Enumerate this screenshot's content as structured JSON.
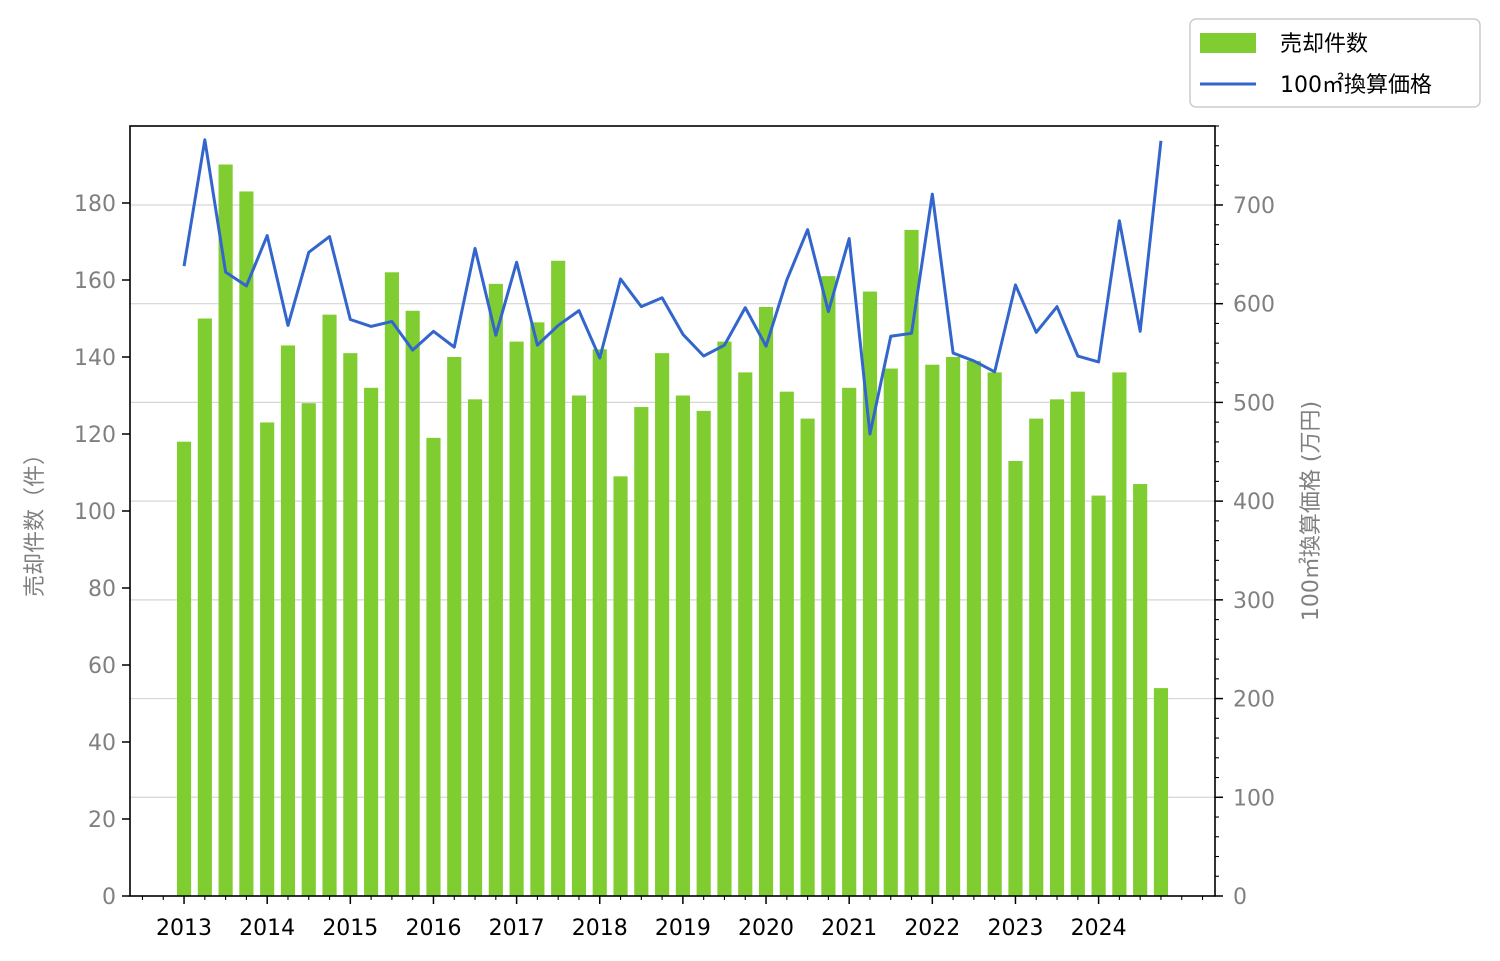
{
  "chart_data": {
    "type": "bar",
    "legend": {
      "position": "top-right",
      "entries": [
        {
          "label": "売却件数",
          "kind": "bar",
          "color": "#7fcd31"
        },
        {
          "label": "100㎡換算価格",
          "kind": "line",
          "color": "#3366cc"
        }
      ]
    },
    "x_tick_labels": [
      "2013",
      "2014",
      "2015",
      "2016",
      "2017",
      "2018",
      "2019",
      "2020",
      "2021",
      "2022",
      "2023",
      "2024"
    ],
    "x_year_range": [
      2012.35,
      2025.4
    ],
    "left_axis": {
      "label": "売却件数（件）",
      "ylim": [
        0,
        200
      ],
      "ticks": [
        0,
        20,
        40,
        60,
        80,
        100,
        120,
        140,
        160,
        180
      ]
    },
    "right_axis": {
      "label": "100㎡換算価格 (万円)",
      "ylim": [
        0,
        780
      ],
      "ticks": [
        0,
        100,
        200,
        300,
        400,
        500,
        600,
        700
      ]
    },
    "grid": true,
    "series": [
      {
        "name": "売却件数",
        "type": "bar",
        "axis": "left",
        "color": "#7fcd31",
        "x": [
          2013.0,
          2013.25,
          2013.5,
          2013.75,
          2014.0,
          2014.25,
          2014.5,
          2014.75,
          2015.0,
          2015.25,
          2015.5,
          2015.75,
          2016.0,
          2016.25,
          2016.5,
          2016.75,
          2017.0,
          2017.25,
          2017.5,
          2017.75,
          2018.0,
          2018.25,
          2018.5,
          2018.75,
          2019.0,
          2019.25,
          2019.5,
          2019.75,
          2020.0,
          2020.25,
          2020.5,
          2020.75,
          2021.0,
          2021.25,
          2021.5,
          2021.75,
          2022.0,
          2022.25,
          2022.5,
          2022.75,
          2023.0,
          2023.25,
          2023.5,
          2023.75,
          2024.0,
          2024.25,
          2024.5,
          2024.75
        ],
        "values": [
          118,
          150,
          190,
          183,
          123,
          143,
          128,
          151,
          141,
          132,
          162,
          152,
          119,
          140,
          129,
          159,
          144,
          149,
          165,
          130,
          142,
          109,
          127,
          141,
          130,
          126,
          144,
          136,
          153,
          131,
          124,
          161,
          132,
          157,
          137,
          173,
          138,
          140,
          139,
          136,
          113,
          124,
          129,
          131,
          104,
          136,
          107,
          54
        ]
      },
      {
        "name": "100㎡換算価格",
        "type": "line",
        "axis": "right",
        "color": "#3366cc",
        "x": [
          2013.0,
          2013.25,
          2013.5,
          2013.75,
          2014.0,
          2014.25,
          2014.5,
          2014.75,
          2015.0,
          2015.25,
          2015.5,
          2015.75,
          2016.0,
          2016.25,
          2016.5,
          2016.75,
          2017.0,
          2017.25,
          2017.5,
          2017.75,
          2018.0,
          2018.25,
          2018.5,
          2018.75,
          2019.0,
          2019.25,
          2019.5,
          2019.75,
          2020.0,
          2020.25,
          2020.5,
          2020.75,
          2021.0,
          2021.25,
          2021.5,
          2021.75,
          2022.0,
          2022.25,
          2022.5,
          2022.75,
          2023.0,
          2023.25,
          2023.5,
          2023.75,
          2024.0,
          2024.25,
          2024.5,
          2024.75
        ],
        "values": [
          638,
          766,
          632,
          618,
          669,
          578,
          652,
          668,
          584,
          577,
          582,
          553,
          572,
          556,
          656,
          568,
          642,
          558,
          578,
          593,
          545,
          625,
          597,
          606,
          569,
          547,
          558,
          596,
          557,
          624,
          675,
          592,
          666,
          468,
          567,
          570,
          711,
          550,
          542,
          531,
          619,
          571,
          597,
          547,
          541,
          684,
          572,
          765
        ]
      }
    ]
  }
}
